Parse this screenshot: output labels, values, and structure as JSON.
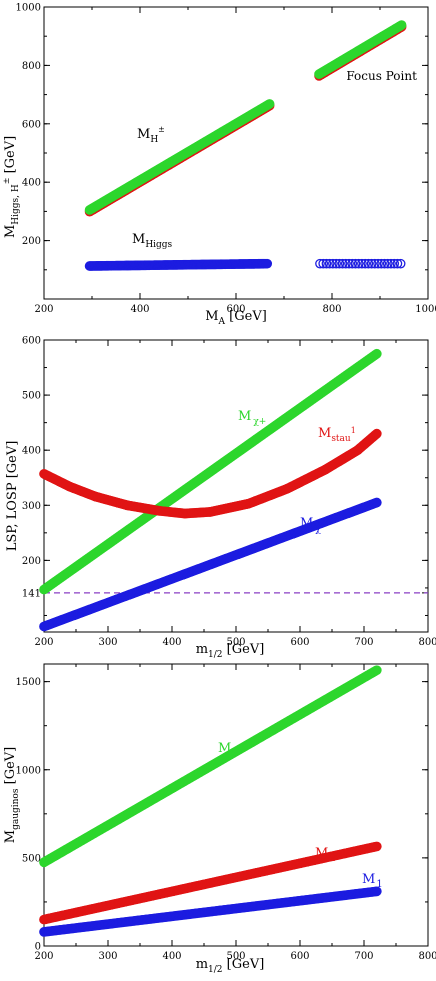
{
  "chart_data": [
    {
      "type": "scatter",
      "xlim": [
        200,
        1000
      ],
      "ylim": [
        0,
        1000
      ],
      "xticks": [
        "200",
        "400",
        "600",
        "800",
        "1000"
      ],
      "yticks": [
        "200",
        "400",
        "600",
        "800",
        "1000"
      ],
      "xlabel": "M",
      "xlabel_sub": "A",
      "xlabel_unit": "[GeV]",
      "ylabel": "M",
      "ylabel_sub": "Higgs, H",
      "ylabel_sup": "±",
      "ylabel_unit": "[GeV]",
      "series": [
        {
          "name": "M",
          "sub": "H",
          "sup": "±",
          "color": "#2dd62d",
          "edge": "#e01414",
          "segments": [
            {
              "x": [
                295,
                670
              ],
              "y": [
                305,
                668
              ]
            },
            {
              "x": [
                773,
                945
              ],
              "y": [
                770,
                938
              ]
            }
          ]
        },
        {
          "name": "M",
          "sub": "Higgs",
          "color": "#1c1ce0",
          "edge": "#1c1ce0",
          "segments": [
            {
              "x": [
                295,
                665
              ],
              "y": [
                113,
                121
              ],
              "filled": true
            },
            {
              "x": [
                775,
                943
              ],
              "y": [
                121,
                121
              ],
              "filled": false
            }
          ]
        }
      ],
      "annotations": [
        {
          "text": "Focus Point",
          "x": 830,
          "y": 765
        }
      ]
    },
    {
      "type": "scatter",
      "xlim": [
        200,
        800
      ],
      "ylim": [
        70,
        600
      ],
      "xticks": [
        "200",
        "300",
        "400",
        "500",
        "600",
        "700",
        "800"
      ],
      "yticks": [
        "141",
        "200",
        "300",
        "400",
        "500",
        "600"
      ],
      "xlabel": "m",
      "xlabel_sub": "1/2",
      "xlabel_unit": "[GeV]",
      "ylabel": "LSP,  LOSP [GeV]",
      "hline": {
        "y": 141,
        "color": "#8a3fc4"
      },
      "series": [
        {
          "name": "M",
          "sub": "χ+",
          "color": "#2dd62d",
          "x": [
            200,
            720
          ],
          "y": [
            147,
            575
          ]
        },
        {
          "name": "M",
          "sub": "stau",
          "sup": "1",
          "color": "#e01414",
          "curve": [
            [
              200,
              357
            ],
            [
              240,
              334
            ],
            [
              280,
              316
            ],
            [
              330,
              300
            ],
            [
              380,
              290
            ],
            [
              420,
              285
            ],
            [
              460,
              288
            ],
            [
              520,
              303
            ],
            [
              580,
              330
            ],
            [
              640,
              365
            ],
            [
              690,
              400
            ],
            [
              720,
              430
            ]
          ]
        },
        {
          "name": "M",
          "sub": "χ",
          "color": "#1c1ce0",
          "x": [
            200,
            720
          ],
          "y": [
            80,
            305
          ]
        }
      ]
    },
    {
      "type": "scatter",
      "xlim": [
        200,
        800
      ],
      "ylim": [
        0,
        1600
      ],
      "xticks": [
        "200",
        "300",
        "400",
        "500",
        "600",
        "700",
        "800"
      ],
      "yticks": [
        "0",
        "500",
        "1000",
        "1500"
      ],
      "xlabel": "m",
      "xlabel_sub": "1/2",
      "xlabel_unit": "[GeV]",
      "ylabel": "M",
      "ylabel_sub": "gauginos",
      "ylabel_unit": "[GeV]",
      "series": [
        {
          "name": "M",
          "sub": "3",
          "color": "#2dd62d",
          "x": [
            200,
            720
          ],
          "y": [
            475,
            1565
          ]
        },
        {
          "name": "M",
          "sub": "2",
          "color": "#e01414",
          "x": [
            200,
            720
          ],
          "y": [
            150,
            565
          ]
        },
        {
          "name": "M",
          "sub": "1",
          "color": "#1c1ce0",
          "x": [
            200,
            720
          ],
          "y": [
            80,
            310
          ]
        }
      ]
    }
  ]
}
